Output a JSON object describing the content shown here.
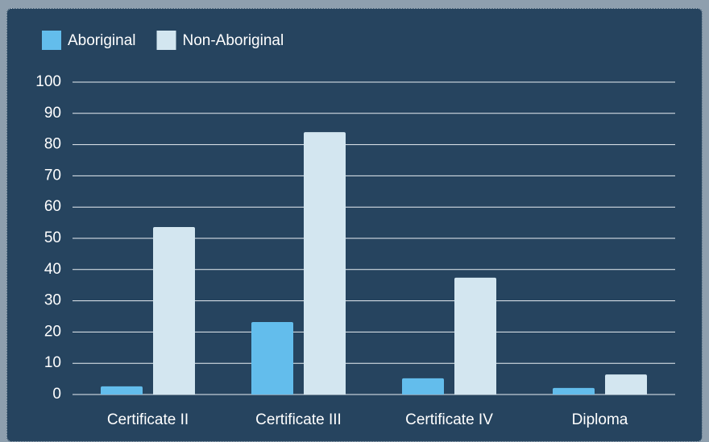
{
  "chart_data": {
    "type": "bar",
    "categories": [
      "Certificate II",
      "Certificate III",
      "Certificate IV",
      "Diploma"
    ],
    "series": [
      {
        "name": "Aboriginal",
        "color": "#63bdec",
        "values": [
          2.6,
          23.2,
          5.2,
          2.1
        ]
      },
      {
        "name": "Non-Aboriginal",
        "color": "#d3e6f0",
        "values": [
          53.6,
          84,
          37.4,
          6.4
        ]
      }
    ],
    "ylim": [
      0,
      100
    ],
    "yticks": [
      0,
      10,
      20,
      30,
      40,
      50,
      60,
      70,
      80,
      90,
      100
    ],
    "grid": true,
    "legend": "top-left"
  }
}
